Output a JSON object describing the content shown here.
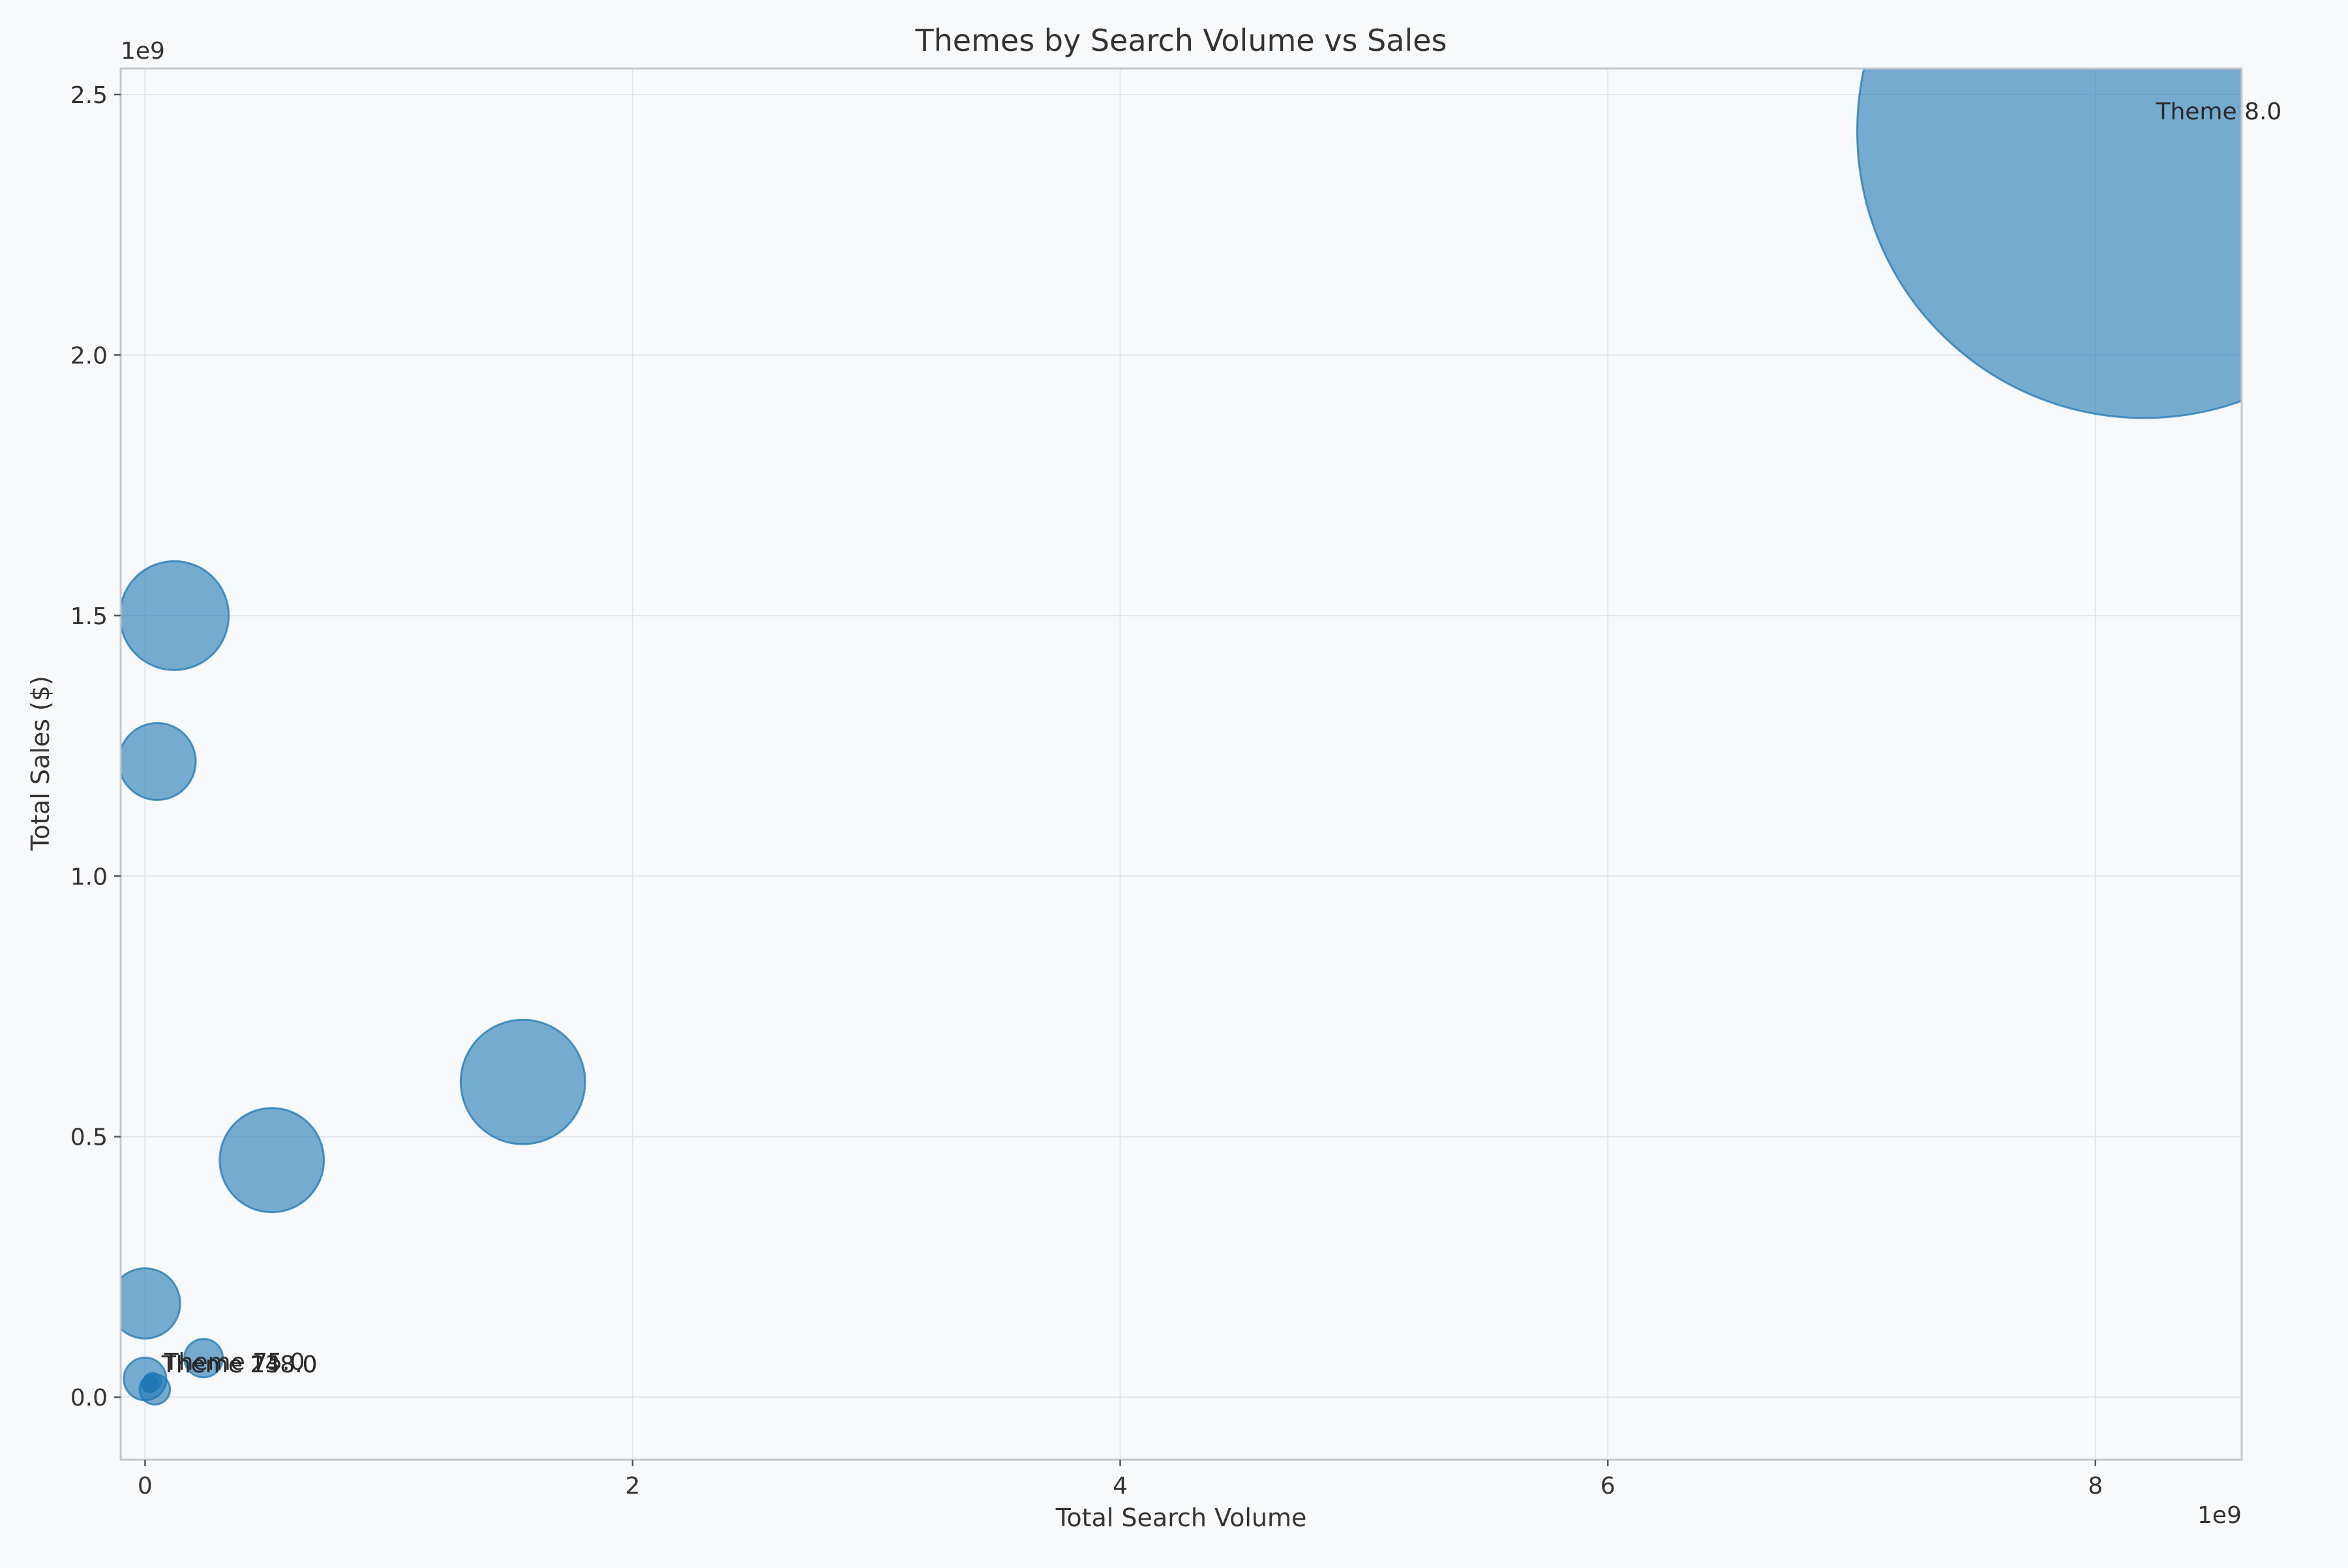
{
  "chart_data": {
    "type": "scatter",
    "title": "Themes by Search Volume vs Sales",
    "xlabel": "Total Search Volume",
    "ylabel": "Total Sales ($)",
    "x_exponent_label": "1e9",
    "y_exponent_label": "1e9",
    "xlim": [
      -100000000.0,
      8600000000.0
    ],
    "ylim": [
      -120000000.0,
      2550000000.0
    ],
    "x_ticks": [
      0,
      2000000000.0,
      4000000000.0,
      6000000000.0,
      8000000000.0
    ],
    "x_tick_labels": [
      "0",
      "2",
      "4",
      "6",
      "8"
    ],
    "y_ticks": [
      0,
      500000000.0,
      1000000000.0,
      1500000000.0,
      2000000000.0,
      2500000000.0
    ],
    "y_tick_labels": [
      "0.0",
      "0.5",
      "1.0",
      "1.5",
      "2.0",
      "2.5"
    ],
    "grid": true,
    "marker_color": "#1f77b4",
    "marker_alpha": 0.6,
    "points": [
      {
        "x": 8200000000.0,
        "y": 2430000000.0,
        "size": 1.0,
        "label": "Theme 8.0"
      },
      {
        "x": 120000000.0,
        "y": 1500000000.0,
        "size": 0.036,
        "label": ""
      },
      {
        "x": 50000000.0,
        "y": 1220000000.0,
        "size": 0.018,
        "label": ""
      },
      {
        "x": 1550000000.0,
        "y": 605000000.0,
        "size": 0.047,
        "label": ""
      },
      {
        "x": 520000000.0,
        "y": 455000000.0,
        "size": 0.033,
        "label": ""
      },
      {
        "x": 0.0,
        "y": 180000000.0,
        "size": 0.015,
        "label": ""
      },
      {
        "x": 240000000.0,
        "y": 75000000.0,
        "size": 0.0045,
        "label": ""
      },
      {
        "x": 0.0,
        "y": 35000000.0,
        "size": 0.0055,
        "label": ""
      },
      {
        "x": 40000000.0,
        "y": 15000000.0,
        "size": 0.0028,
        "label": ""
      },
      {
        "x": 30000000.0,
        "y": 30000000.0,
        "size": 0.0009,
        "label": "Theme 75.0"
      },
      {
        "x": 20000000.0,
        "y": 25000000.0,
        "size": 0.0008,
        "label": "Theme 248.0"
      },
      {
        "x": 20000000.0,
        "y": 25000000.0,
        "size": 0.0007,
        "label": "Theme 138.0"
      }
    ]
  }
}
